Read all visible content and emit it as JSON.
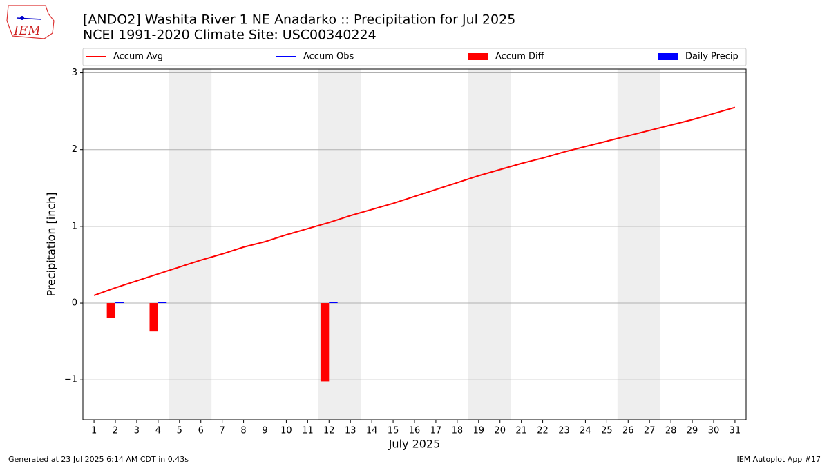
{
  "chart_data": {
    "type": "combo",
    "logo_text": "IEM",
    "title": "[ANDO2] Washita River 1 NE Anadarko :: Precipitation for Jul 2025",
    "subtitle": "NCEI 1991-2020 Climate Site: USC00340224",
    "x_label": "July 2025",
    "y_label": "Precipitation [inch]",
    "footer_left": "Generated at 23 Jul 2025 6:14 AM CDT in 0.43s",
    "footer_right": "IEM Autoplot App #17",
    "xlim": [
      0.48,
      31.52
    ],
    "xticks": [
      1,
      2,
      3,
      4,
      5,
      6,
      7,
      8,
      9,
      10,
      11,
      12,
      13,
      14,
      15,
      16,
      17,
      18,
      19,
      20,
      21,
      22,
      23,
      24,
      25,
      26,
      27,
      28,
      29,
      30,
      31
    ],
    "ylim": [
      -1.52,
      3.05
    ],
    "yticks": [
      {
        "value": -1,
        "label": "−1"
      },
      0,
      1,
      2,
      3
    ],
    "grid": true,
    "weekend_spans": [
      [
        4.5,
        6.5
      ],
      [
        11.5,
        13.5
      ],
      [
        18.5,
        20.5
      ],
      [
        25.5,
        27.5
      ]
    ],
    "weekend_color": "#eeeeee",
    "series": [
      {
        "name": "Accum Avg",
        "color": "#ff0000",
        "kind": "line",
        "x": [
          1,
          2,
          3,
          4,
          5,
          6,
          7,
          8,
          9,
          10,
          11,
          12,
          13,
          14,
          15,
          16,
          17,
          18,
          19,
          20,
          21,
          22,
          23,
          24,
          25,
          26,
          27,
          28,
          29,
          30,
          31
        ],
        "values": [
          0.1,
          0.2,
          0.29,
          0.38,
          0.47,
          0.56,
          0.64,
          0.73,
          0.8,
          0.89,
          0.97,
          1.05,
          1.14,
          1.22,
          1.3,
          1.39,
          1.48,
          1.57,
          1.66,
          1.74,
          1.82,
          1.89,
          1.97,
          2.04,
          2.11,
          2.18,
          2.25,
          2.32,
          2.39,
          2.47,
          2.55
        ]
      },
      {
        "name": "Accum Obs",
        "color": "#0000ff",
        "kind": "line",
        "x": [],
        "values": []
      },
      {
        "name": "Accum Diff",
        "color": "#ff0000",
        "kind": "bar",
        "offset": -0.2,
        "width": 0.4,
        "x": [
          2,
          4,
          12
        ],
        "values": [
          -0.19,
          -0.37,
          -1.02
        ]
      },
      {
        "name": "Daily Precip",
        "color": "#0000ff",
        "kind": "bar",
        "offset": 0.2,
        "width": 0.4,
        "x": [
          2,
          4,
          12
        ],
        "values": [
          0.01,
          0.01,
          0.01
        ]
      }
    ]
  }
}
